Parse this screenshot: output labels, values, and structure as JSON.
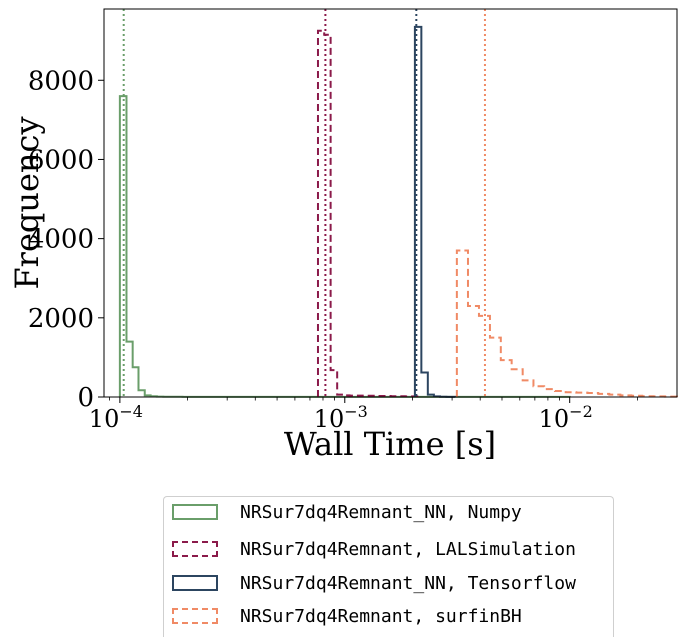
{
  "chart_data": {
    "type": "histogram",
    "xlabel": "Wall Time [s]",
    "ylabel": "Frequency",
    "x_scale": "log",
    "xlim": [
      8.5e-05,
      0.03
    ],
    "ylim": [
      0,
      9800
    ],
    "x_ticks": [
      0.0001,
      0.001,
      0.01
    ],
    "x_tick_labels": [
      "10^-4",
      "10^-3",
      "10^-2"
    ],
    "y_ticks": [
      0,
      2000,
      4000,
      6000,
      8000
    ],
    "y_tick_labels": [
      "0",
      "2000",
      "4000",
      "6000",
      "8000"
    ],
    "grid": false,
    "legend_position": "below",
    "series": [
      {
        "name": "NRSur7dq4Remnant_NN, Numpy",
        "color": "#6a9e6a",
        "style": "solid",
        "median_line": 0.000104,
        "edges": [
          0.0001,
          0.000107,
          0.000114,
          0.000121,
          0.000129,
          0.000137,
          0.000146,
          0.000156,
          0.000166,
          0.000177,
          0.00019,
          0.00023,
          0.0003,
          0.0004,
          0.0006,
          0.0008,
          0.001,
          0.0015,
          0.002,
          0.003,
          0.0045,
          0.0065,
          0.01
        ],
        "counts": [
          7600,
          1400,
          750,
          170,
          40,
          20,
          10,
          5,
          5,
          5,
          2,
          2,
          2,
          2,
          2,
          2,
          2,
          2,
          2,
          2,
          2,
          2
        ]
      },
      {
        "name": "NRSur7dq4Remnant, LALSimulation",
        "color": "#8b1a4a",
        "style": "dashed",
        "median_line": 0.00082,
        "edges": [
          0.00076,
          0.00081,
          0.000865,
          0.000925,
          0.000985,
          0.00105,
          0.0012,
          0.0014,
          0.0016,
          0.00185,
          0.0021
        ],
        "counts": [
          9250,
          9150,
          680,
          60,
          40,
          35,
          30,
          25,
          20,
          15
        ]
      },
      {
        "name": "NRSur7dq4Remnant_NN, Tensorflow",
        "color": "#2c4560",
        "style": "solid",
        "median_line": 0.00208,
        "edges": [
          0.00205,
          0.00219,
          0.00234,
          0.00249,
          0.00265,
          0.00283,
          0.0031
        ],
        "counts": [
          9350,
          620,
          60,
          15,
          5,
          2
        ]
      },
      {
        "name": "NRSur7dq4Remnant, surfinBH",
        "color": "#f08a65",
        "style": "dashed",
        "median_line": 0.0042,
        "edges": [
          0.00315,
          0.00353,
          0.00395,
          0.00442,
          0.00494,
          0.00552,
          0.00618,
          0.0069,
          0.0077,
          0.0086,
          0.0096,
          0.0107,
          0.012,
          0.0134,
          0.015,
          0.0168,
          0.0188,
          0.021,
          0.0235,
          0.0265,
          0.03
        ],
        "counts": [
          3700,
          2300,
          2050,
          1500,
          930,
          700,
          420,
          270,
          200,
          150,
          120,
          110,
          100,
          80,
          60,
          40,
          30,
          20,
          15,
          10
        ]
      }
    ]
  }
}
